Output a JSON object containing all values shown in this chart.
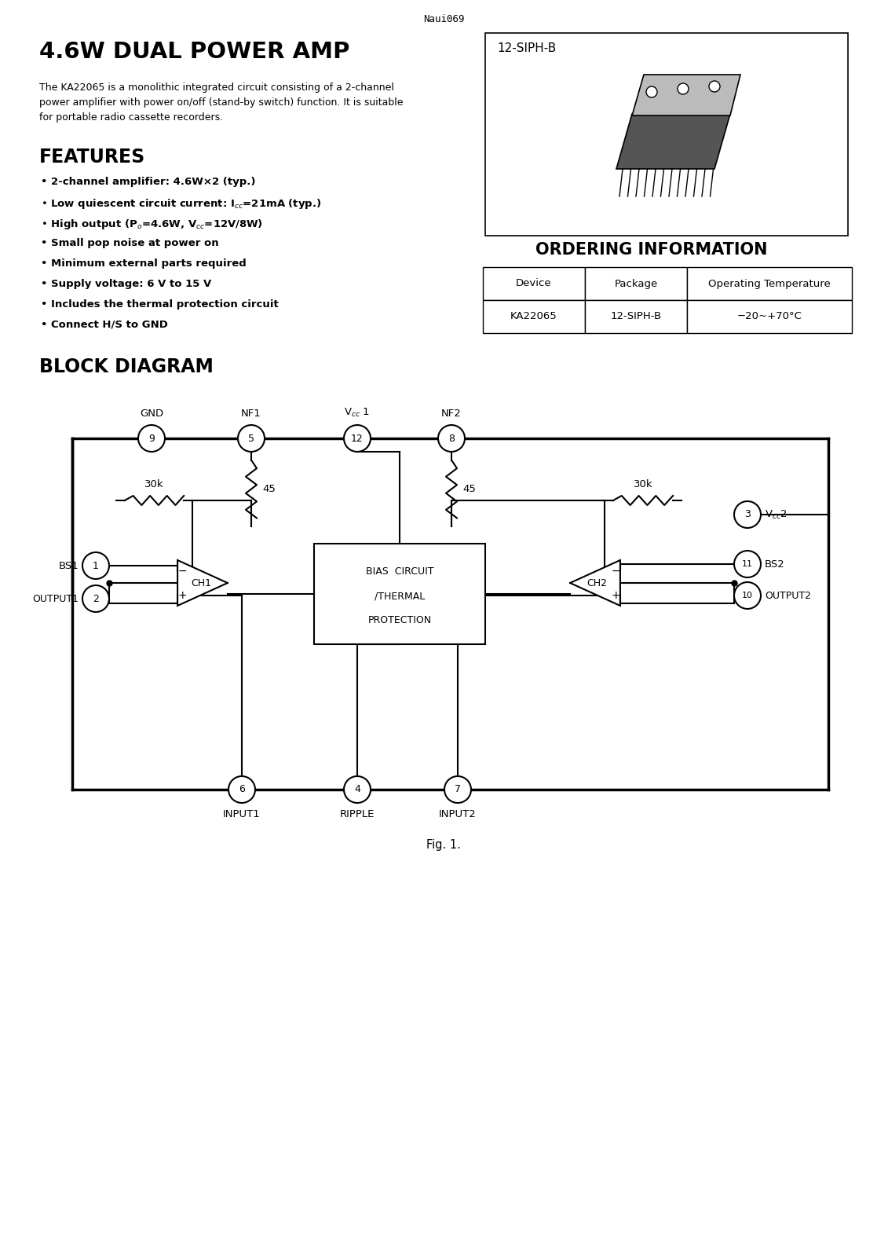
{
  "page_header": "Naui069",
  "title": "4.6W DUAL POWER AMP",
  "description": "The KA22065 is a monolithic integrated circuit consisting of a 2-channel\npower amplifier with power on/off (stand-by switch) function. It is suitable\nfor portable radio cassette recorders.",
  "features_title": "FEATURES",
  "feature_lines": [
    "• 2-channel amplifier: 4.6W×2 (typ.)",
    "• Low quiescent circuit current: I$_{cc}$=21mA (typ.)",
    "• High output (P$_o$=4.6W, V$_{cc}$=12V/8W)",
    "• Small pop noise at power on",
    "• Minimum external parts required",
    "• Supply voltage: 6 V to 15 V",
    "• Includes the thermal protection circuit",
    "• Connect H/S to GND"
  ],
  "package_label": "12-SIPH-B",
  "ordering_title": "ORDERING INFORMATION",
  "table_headers": [
    "Device",
    "Package",
    "Operating Temperature"
  ],
  "table_row": [
    "KA22065",
    "12-SIPH-B",
    "−20~+70°C"
  ],
  "block_diagram_title": "BLOCK DIAGRAM",
  "fig_label": "Fig. 1.",
  "bg_color": "#ffffff",
  "text_color": "#000000",
  "line_color": "#000000"
}
